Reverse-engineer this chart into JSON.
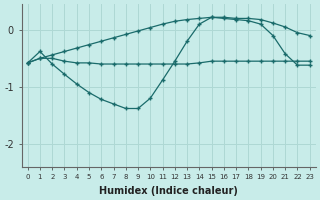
{
  "xlabel": "Humidex (Indice chaleur)",
  "background_color": "#c8ece9",
  "grid_color": "#aed8d4",
  "line_color": "#1a6b6b",
  "xlim": [
    -0.5,
    23.5
  ],
  "ylim": [
    -2.4,
    0.45
  ],
  "yticks": [
    0,
    -1,
    -2
  ],
  "xticks": [
    0,
    1,
    2,
    3,
    4,
    5,
    6,
    7,
    8,
    9,
    10,
    11,
    12,
    13,
    14,
    15,
    16,
    17,
    18,
    19,
    20,
    21,
    22,
    23
  ],
  "line1_x": [
    0,
    1,
    2,
    3,
    4,
    5,
    6,
    7,
    8,
    9,
    10,
    11,
    12,
    13,
    14,
    15,
    16,
    17,
    18,
    19,
    20,
    21,
    22,
    23
  ],
  "line1_y": [
    -0.58,
    -0.5,
    -0.5,
    -0.55,
    -0.58,
    -0.58,
    -0.6,
    -0.6,
    -0.6,
    -0.6,
    -0.6,
    -0.6,
    -0.6,
    -0.6,
    -0.58,
    -0.55,
    -0.55,
    -0.55,
    -0.55,
    -0.55,
    -0.55,
    -0.55,
    -0.55,
    -0.55
  ],
  "line2_x": [
    0,
    1,
    2,
    3,
    4,
    5,
    6,
    7,
    8,
    9,
    10,
    11,
    12,
    13,
    14,
    15,
    16,
    17,
    18,
    19,
    20,
    21,
    22,
    23
  ],
  "line2_y": [
    -0.58,
    -0.5,
    -0.44,
    -0.38,
    -0.32,
    -0.26,
    -0.2,
    -0.14,
    -0.08,
    -0.02,
    0.04,
    0.1,
    0.15,
    0.18,
    0.2,
    0.22,
    0.22,
    0.2,
    0.2,
    0.18,
    0.12,
    0.05,
    -0.05,
    -0.1
  ],
  "line3_x": [
    0,
    1,
    2,
    3,
    4,
    5,
    6,
    7,
    8,
    9,
    10,
    11,
    12,
    13,
    14,
    15,
    16,
    17,
    18,
    19,
    20,
    21,
    22,
    23
  ],
  "line3_y": [
    -0.58,
    -0.38,
    -0.6,
    -0.78,
    -0.95,
    -1.1,
    -1.22,
    -1.3,
    -1.38,
    -1.38,
    -1.2,
    -0.88,
    -0.55,
    -0.2,
    0.1,
    0.22,
    0.2,
    0.18,
    0.16,
    0.1,
    -0.1,
    -0.42,
    -0.62,
    -0.62
  ]
}
